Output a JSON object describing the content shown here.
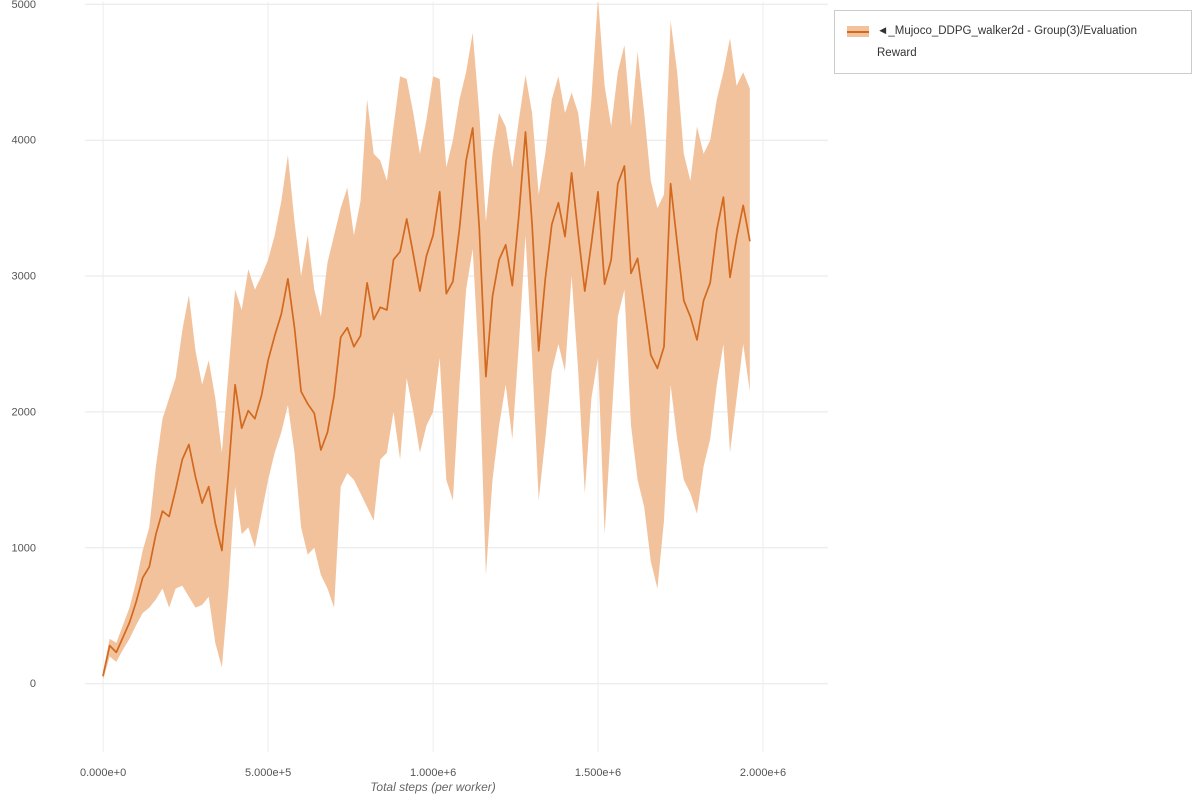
{
  "page": {
    "background": "#ffffff"
  },
  "legend": {
    "label": "◄_Mujoco_DDPG_walker2d - Group(3)/Evaluation Reward",
    "band_color": "#f2c29c",
    "line_color": "#d2691e"
  },
  "chart_data": {
    "type": "line",
    "title": "",
    "xlabel": "Total steps (per worker)",
    "ylabel": "",
    "grid": true,
    "legend_position": "top-right",
    "xlim": [
      -55000,
      2197000
    ],
    "ylim": [
      -503,
      5017
    ],
    "xticks": {
      "values": [
        0,
        500000,
        1000000,
        1500000,
        2000000
      ],
      "labels": [
        "0.000e+0",
        "5.000e+5",
        "1.000e+6",
        "1.500e+6",
        "2.000e+6"
      ]
    },
    "yticks": {
      "values": [
        0,
        1000,
        2000,
        3000,
        4000,
        5000
      ],
      "labels": [
        "0",
        "1000",
        "2000",
        "3000",
        "4000",
        "5000"
      ]
    },
    "series": [
      {
        "name": "◄_Mujoco_DDPG_walker2d - Group(3)/Evaluation Reward",
        "color": "#d2691e",
        "band_color": "#f2c29c",
        "x": [
          0,
          20000,
          40000,
          60000,
          80000,
          100000,
          120000,
          140000,
          160000,
          180000,
          200000,
          220000,
          240000,
          260000,
          280000,
          300000,
          320000,
          340000,
          360000,
          380000,
          400000,
          420000,
          440000,
          460000,
          480000,
          500000,
          520000,
          540000,
          560000,
          580000,
          600000,
          620000,
          640000,
          660000,
          680000,
          700000,
          720000,
          740000,
          760000,
          780000,
          800000,
          820000,
          840000,
          860000,
          880000,
          900000,
          920000,
          940000,
          960000,
          980000,
          1000000,
          1020000,
          1040000,
          1060000,
          1080000,
          1100000,
          1120000,
          1140000,
          1160000,
          1180000,
          1200000,
          1220000,
          1240000,
          1260000,
          1280000,
          1300000,
          1320000,
          1340000,
          1360000,
          1380000,
          1400000,
          1420000,
          1440000,
          1460000,
          1480000,
          1500000,
          1520000,
          1540000,
          1560000,
          1580000,
          1600000,
          1620000,
          1640000,
          1660000,
          1680000,
          1700000,
          1720000,
          1740000,
          1760000,
          1780000,
          1800000,
          1820000,
          1840000,
          1860000,
          1880000,
          1900000,
          1920000,
          1940000,
          1960000
        ],
        "mean": [
          60,
          280,
          230,
          340,
          450,
          600,
          780,
          860,
          1100,
          1270,
          1230,
          1430,
          1650,
          1760,
          1520,
          1330,
          1450,
          1180,
          980,
          1560,
          2200,
          1880,
          2010,
          1950,
          2120,
          2380,
          2560,
          2720,
          2980,
          2620,
          2150,
          2060,
          1990,
          1720,
          1850,
          2120,
          2550,
          2620,
          2480,
          2560,
          2950,
          2680,
          2770,
          2750,
          3120,
          3180,
          3420,
          3160,
          2890,
          3150,
          3300,
          3620,
          2870,
          2960,
          3350,
          3850,
          4090,
          3350,
          2260,
          2850,
          3120,
          3230,
          2930,
          3450,
          4060,
          3380,
          2450,
          2980,
          3380,
          3540,
          3290,
          3760,
          3310,
          2890,
          3240,
          3620,
          2940,
          3120,
          3680,
          3810,
          3020,
          3130,
          2780,
          2420,
          2320,
          2480,
          3680,
          3240,
          2820,
          2700,
          2530,
          2820,
          2950,
          3340,
          3580,
          2990,
          3280,
          3520,
          3260
        ],
        "upper": [
          90,
          330,
          300,
          430,
          560,
          750,
          980,
          1150,
          1600,
          1950,
          2100,
          2250,
          2600,
          2860,
          2450,
          2200,
          2380,
          2100,
          1700,
          2300,
          2900,
          2750,
          3050,
          2900,
          3000,
          3120,
          3300,
          3550,
          3890,
          3400,
          3000,
          3300,
          2900,
          2700,
          3100,
          3300,
          3500,
          3650,
          3300,
          3550,
          4300,
          3900,
          3850,
          3700,
          4100,
          4470,
          4450,
          4200,
          3900,
          4150,
          4470,
          4450,
          3800,
          4000,
          4300,
          4500,
          4790,
          4200,
          3400,
          3900,
          4200,
          4100,
          3800,
          4150,
          4480,
          4200,
          3600,
          3900,
          4300,
          4470,
          4200,
          4350,
          4200,
          3800,
          4300,
          5050,
          4400,
          4100,
          4500,
          4700,
          4100,
          4650,
          4200,
          3700,
          3500,
          3600,
          4880,
          4500,
          3900,
          3700,
          4100,
          3900,
          4000,
          4300,
          4500,
          4750,
          4400,
          4500,
          4380
        ],
        "lower": [
          30,
          200,
          160,
          250,
          330,
          430,
          520,
          560,
          620,
          700,
          560,
          700,
          720,
          640,
          560,
          580,
          640,
          300,
          120,
          700,
          1450,
          1100,
          1150,
          1000,
          1250,
          1500,
          1700,
          1850,
          2050,
          1700,
          1150,
          950,
          1000,
          800,
          700,
          560,
          1450,
          1550,
          1500,
          1400,
          1300,
          1200,
          1650,
          1700,
          2000,
          1650,
          2250,
          2000,
          1700,
          1900,
          2000,
          2400,
          1500,
          1350,
          2200,
          2900,
          3200,
          2300,
          800,
          1500,
          1900,
          2200,
          1800,
          2500,
          3300,
          2400,
          1350,
          1800,
          2300,
          2500,
          2300,
          3000,
          2300,
          1400,
          2100,
          2400,
          1100,
          1900,
          2700,
          2900,
          1900,
          1500,
          1300,
          900,
          700,
          1200,
          2200,
          1800,
          1500,
          1400,
          1250,
          1600,
          1800,
          2200,
          2500,
          1700,
          2100,
          2500,
          2150
        ]
      }
    ]
  }
}
